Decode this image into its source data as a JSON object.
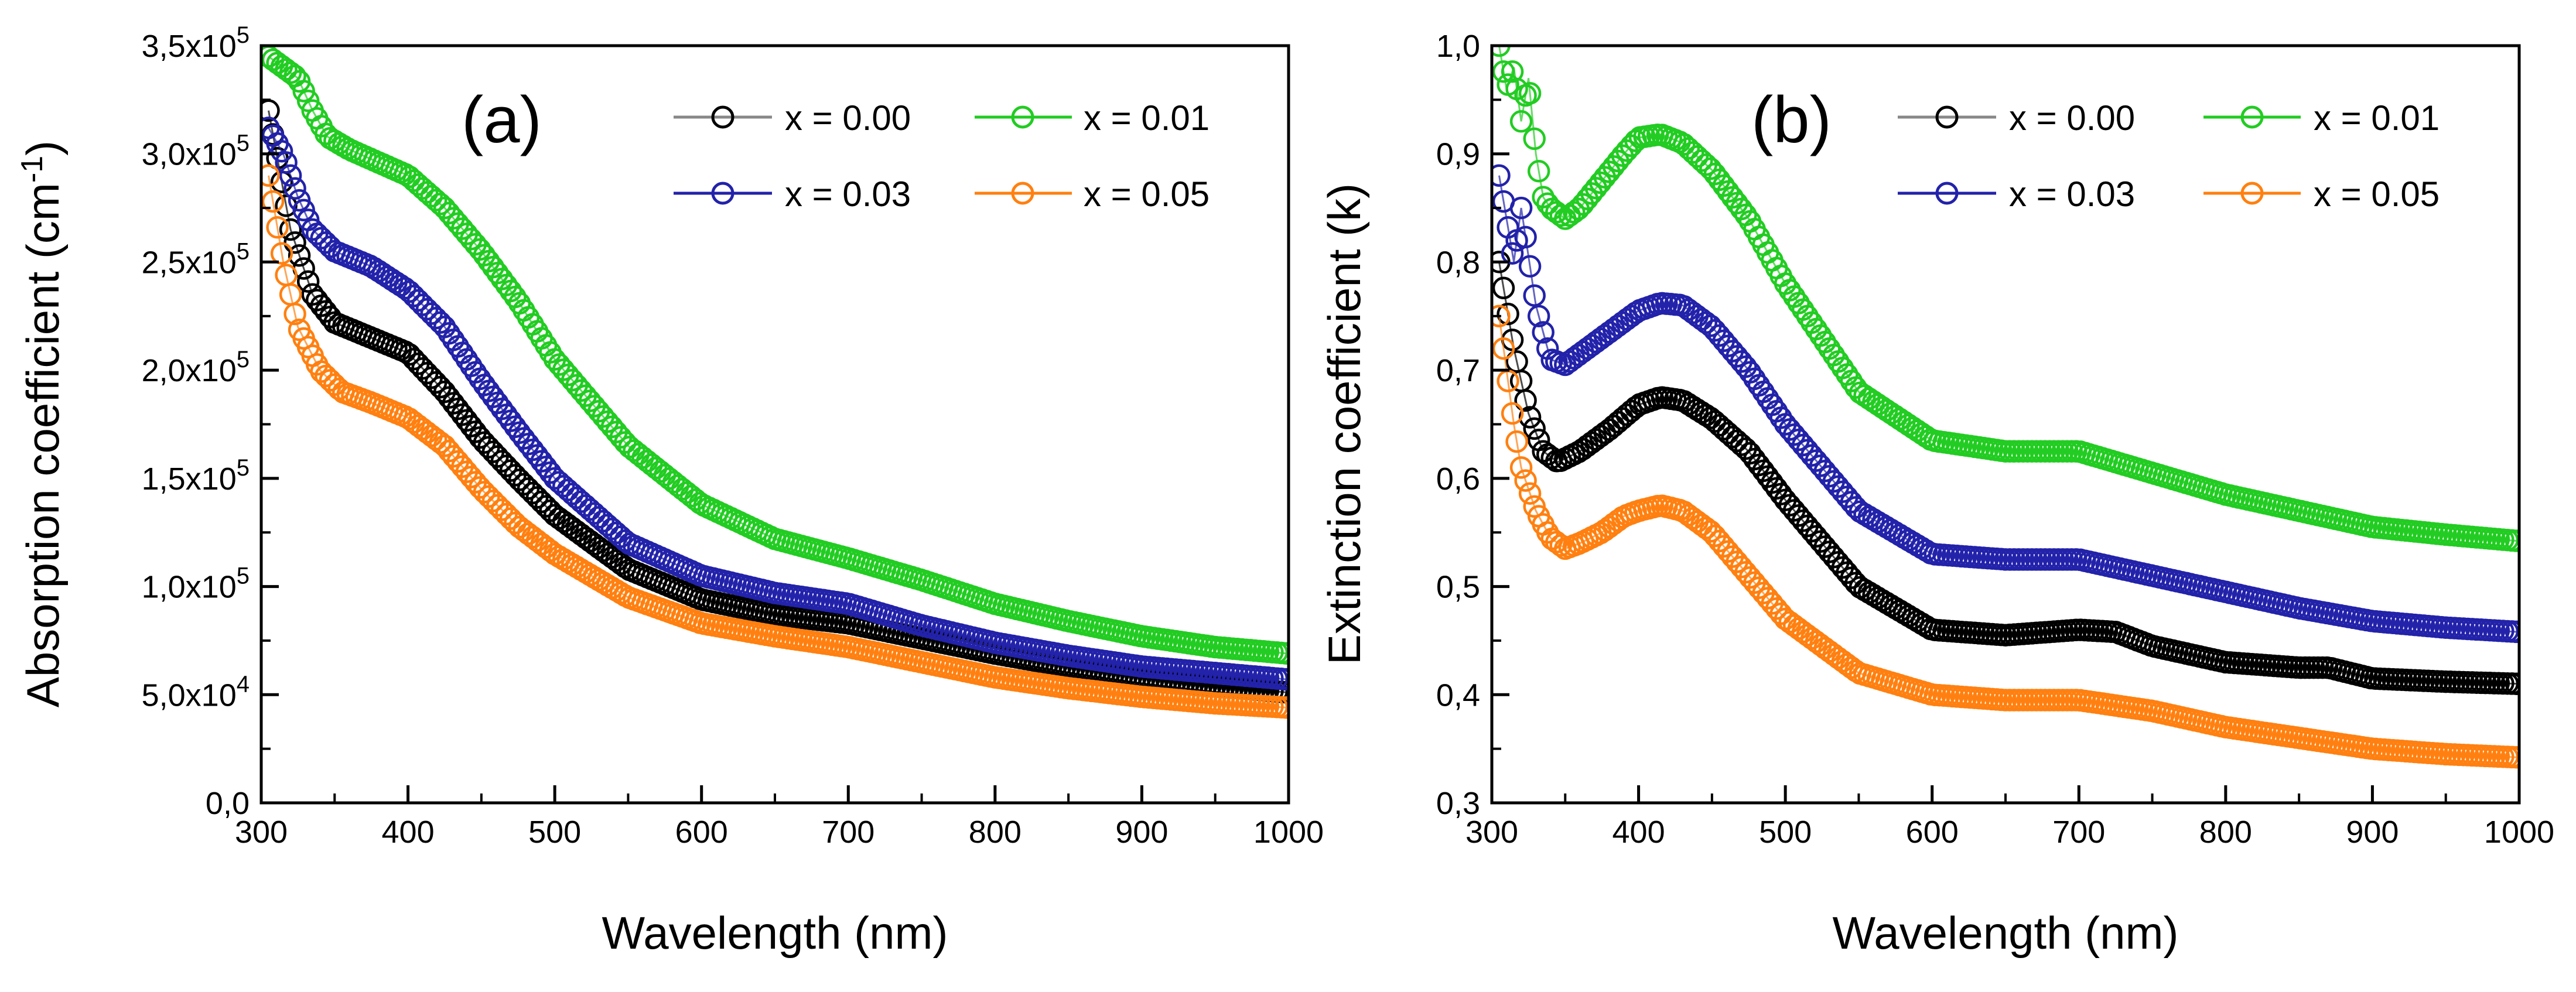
{
  "chart_data": [
    {
      "type": "scatter",
      "panel_label": "(a)",
      "xlabel": "Wavelength (nm)",
      "ylabel_main": "Absorption coefficient (cm",
      "ylabel_sup": "-1",
      "ylabel_close": ")",
      "xlim": [
        300,
        1000
      ],
      "ylim": [
        0,
        350000
      ],
      "x_ticks": [
        300,
        400,
        500,
        600,
        700,
        800,
        900,
        1000
      ],
      "x_tick_labels": [
        "300",
        "400",
        "500",
        "600",
        "700",
        "800",
        "900",
        "1000"
      ],
      "y_ticks": [
        0,
        50000,
        100000,
        150000,
        200000,
        250000,
        300000,
        350000
      ],
      "y_tick_mantissa": [
        "0,0",
        "5,0x10",
        "1,0x10",
        "1,5x10",
        "2,0x10",
        "2,5x10",
        "3,0x10",
        "3,5x10"
      ],
      "y_tick_exponent": [
        "",
        "4",
        "5",
        "5",
        "5",
        "5",
        "5",
        "5"
      ],
      "legend": [
        "x = 0.00",
        "x = 0.01",
        "x = 0.03",
        "x = 0.05"
      ],
      "series": [
        {
          "name": "x = 0.00",
          "color": "#000000",
          "x": [
            305,
            320,
            335,
            350,
            375,
            400,
            425,
            450,
            475,
            500,
            550,
            600,
            650,
            700,
            750,
            800,
            850,
            900,
            950,
            1000
          ],
          "y": [
            320000,
            265000,
            235000,
            222000,
            215000,
            208000,
            190000,
            168000,
            150000,
            133000,
            108000,
            94000,
            87000,
            83000,
            76000,
            69000,
            63000,
            58000,
            54000,
            51000
          ]
        },
        {
          "name": "x = 0.01",
          "color": "#22cc22",
          "x": [
            305,
            315,
            325,
            335,
            345,
            360,
            380,
            400,
            425,
            450,
            475,
            500,
            550,
            600,
            650,
            700,
            750,
            800,
            850,
            900,
            950,
            1000
          ],
          "y": [
            345000,
            340000,
            335000,
            320000,
            308000,
            302000,
            296000,
            290000,
            275000,
            255000,
            232000,
            205000,
            165000,
            138000,
            122000,
            113000,
            103000,
            92000,
            84000,
            77000,
            72000,
            69000
          ]
        },
        {
          "name": "x = 0.03",
          "color": "#2222aa",
          "x": [
            305,
            315,
            325,
            335,
            350,
            375,
            400,
            425,
            450,
            475,
            500,
            550,
            600,
            650,
            700,
            750,
            800,
            850,
            900,
            950,
            1000
          ],
          "y": [
            312000,
            300000,
            280000,
            265000,
            255000,
            248000,
            237000,
            220000,
            195000,
            172000,
            150000,
            120000,
            105000,
            97000,
            92000,
            82000,
            74000,
            68000,
            63000,
            60000,
            57000
          ]
        },
        {
          "name": "x = 0.05",
          "color": "#ff8010",
          "x": [
            305,
            315,
            325,
            340,
            355,
            375,
            400,
            425,
            450,
            475,
            500,
            550,
            600,
            650,
            700,
            750,
            800,
            850,
            900,
            950,
            1000
          ],
          "y": [
            290000,
            250000,
            220000,
            200000,
            190000,
            185000,
            178000,
            165000,
            145000,
            128000,
            115000,
            95000,
            83000,
            77000,
            72000,
            65000,
            58000,
            53000,
            49000,
            46000,
            44000
          ]
        }
      ]
    },
    {
      "type": "scatter",
      "panel_label": "(b)",
      "xlabel": "Wavelength (nm)",
      "ylabel": "Extinction coefficient (k)",
      "xlim": [
        300,
        1000
      ],
      "ylim": [
        0.3,
        1.0
      ],
      "x_ticks": [
        300,
        400,
        500,
        600,
        700,
        800,
        900,
        1000
      ],
      "x_tick_labels": [
        "300",
        "400",
        "500",
        "600",
        "700",
        "800",
        "900",
        "1000"
      ],
      "y_ticks": [
        0.3,
        0.4,
        0.5,
        0.6,
        0.7,
        0.8,
        0.9,
        1.0
      ],
      "y_tick_labels": [
        "0,3",
        "0,4",
        "0,5",
        "0,6",
        "0,7",
        "0,8",
        "0,9",
        "1,0"
      ],
      "legend": [
        "x = 0.00",
        "x = 0.01",
        "x = 0.03",
        "x = 0.05"
      ],
      "series": [
        {
          "name": "x = 0.00",
          "color": "#000000",
          "x": [
            305,
            315,
            325,
            335,
            345,
            360,
            380,
            400,
            415,
            430,
            450,
            475,
            500,
            550,
            600,
            650,
            700,
            725,
            750,
            800,
            850,
            870,
            900,
            950,
            1000
          ],
          "y": [
            0.8,
            0.72,
            0.66,
            0.625,
            0.615,
            0.625,
            0.645,
            0.668,
            0.675,
            0.672,
            0.655,
            0.625,
            0.58,
            0.5,
            0.46,
            0.455,
            0.46,
            0.458,
            0.445,
            0.43,
            0.425,
            0.425,
            0.415,
            0.412,
            0.41
          ]
        },
        {
          "name": "x = 0.01",
          "color": "#22cc22",
          "x": [
            305,
            310,
            315,
            320,
            325,
            330,
            335,
            340,
            350,
            360,
            375,
            390,
            400,
            415,
            430,
            450,
            475,
            500,
            550,
            600,
            650,
            700,
            750,
            800,
            850,
            900,
            950,
            1000
          ],
          "y": [
            1.0,
            0.96,
            0.98,
            0.93,
            0.97,
            0.9,
            0.86,
            0.85,
            0.84,
            0.85,
            0.875,
            0.9,
            0.915,
            0.918,
            0.91,
            0.885,
            0.84,
            0.78,
            0.68,
            0.635,
            0.625,
            0.625,
            0.605,
            0.585,
            0.57,
            0.555,
            0.548,
            0.542
          ]
        },
        {
          "name": "x = 0.03",
          "color": "#2222aa",
          "x": [
            305,
            310,
            315,
            320,
            330,
            340,
            350,
            360,
            375,
            390,
            400,
            415,
            430,
            450,
            475,
            500,
            550,
            600,
            650,
            700,
            750,
            800,
            850,
            900,
            950,
            1000
          ],
          "y": [
            0.88,
            0.84,
            0.8,
            0.85,
            0.76,
            0.71,
            0.705,
            0.715,
            0.73,
            0.745,
            0.755,
            0.762,
            0.76,
            0.74,
            0.7,
            0.65,
            0.57,
            0.53,
            0.525,
            0.525,
            0.51,
            0.495,
            0.48,
            0.468,
            0.462,
            0.458
          ]
        },
        {
          "name": "x = 0.05",
          "color": "#ff8010",
          "x": [
            305,
            310,
            315,
            320,
            330,
            340,
            350,
            360,
            375,
            390,
            400,
            415,
            430,
            450,
            475,
            500,
            550,
            600,
            650,
            700,
            750,
            800,
            850,
            900,
            950,
            1000
          ],
          "y": [
            0.75,
            0.7,
            0.65,
            0.61,
            0.57,
            0.545,
            0.535,
            0.54,
            0.55,
            0.565,
            0.57,
            0.575,
            0.57,
            0.55,
            0.51,
            0.47,
            0.42,
            0.4,
            0.395,
            0.395,
            0.385,
            0.37,
            0.36,
            0.35,
            0.345,
            0.342
          ]
        }
      ]
    }
  ]
}
